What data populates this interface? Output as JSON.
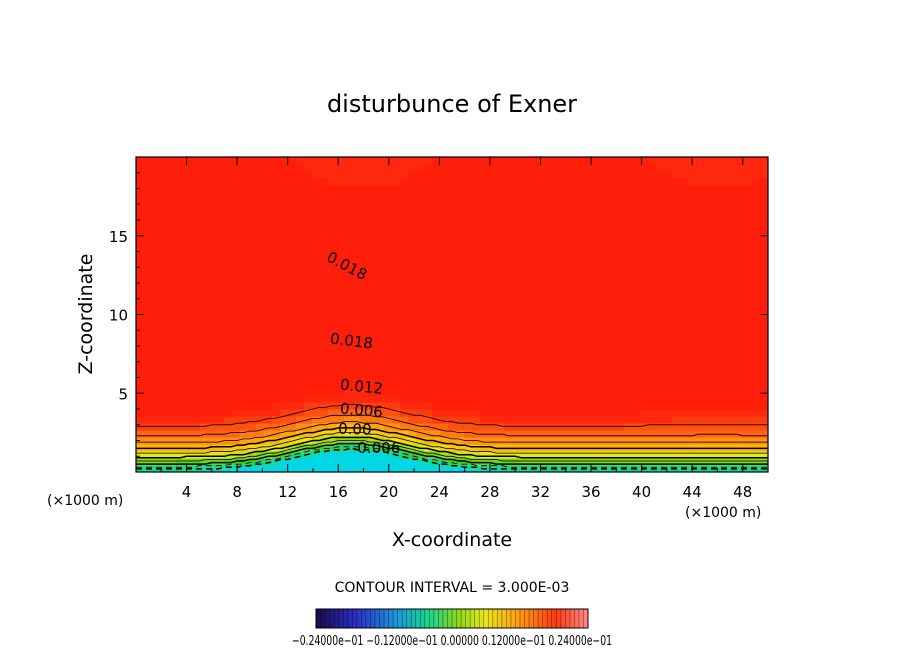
{
  "chart_data": {
    "type": "contour",
    "title": "disturbunce of Exner",
    "xlabel": "X-coordinate",
    "ylabel": "Z-coordinate",
    "x_unit": "(×1000 m)",
    "x_unit_right": "(×1000 m)",
    "xlim": [
      0,
      50
    ],
    "ylim": [
      0,
      20
    ],
    "x_ticks": [
      4,
      8,
      12,
      16,
      20,
      24,
      28,
      32,
      36,
      40,
      44,
      48
    ],
    "y_ticks": [
      5,
      10,
      15
    ],
    "contour_interval_text": "CONTOUR INTERVAL = 3.000E-03",
    "contour_labels": [
      {
        "text": "0.018",
        "x": 16.5,
        "z": 12.8,
        "angle": 28
      },
      {
        "text": "0.018",
        "x": 17.0,
        "z": 8.0,
        "angle": 7
      },
      {
        "text": "0.012",
        "x": 17.8,
        "z": 5.1,
        "angle": 6
      },
      {
        "text": "0.006",
        "x": 17.8,
        "z": 3.6,
        "angle": 5
      },
      {
        "text": "0.00",
        "x": 17.3,
        "z": 2.4,
        "angle": 2
      },
      {
        "text": "-0.006",
        "x": 19.0,
        "z": 1.2,
        "angle": 0
      }
    ],
    "colorbar_labels": "−0.24000e−01 −0.12000e−01 0.00000 0.12000e−01 0.24000e−01",
    "colorbar_range": [
      -0.024,
      0.024
    ]
  }
}
